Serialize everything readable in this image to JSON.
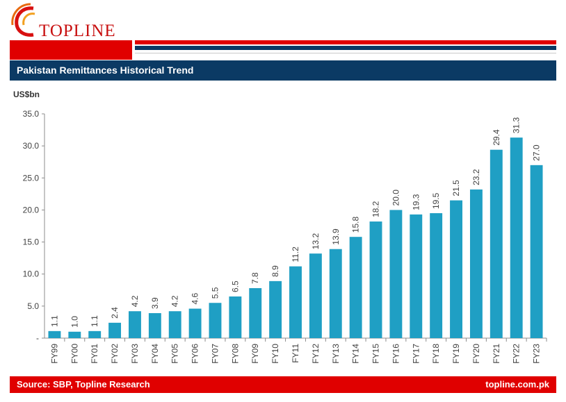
{
  "brand": {
    "name": "TOPLINE",
    "accent": "#e00000",
    "navy": "#0b3a64",
    "bar_color": "#1f9fc4"
  },
  "header": {
    "title": "Pakistan Remittances Historical Trend"
  },
  "footer": {
    "source": "Source: SBP, Topline Research",
    "website": "topline.com.pk"
  },
  "chart_data": {
    "type": "bar",
    "title": "Pakistan Remittances Historical Trend",
    "ylabel": "US$bn",
    "xlabel": "",
    "ylim": [
      0,
      35
    ],
    "yticks": [
      "-",
      "5.0",
      "10.0",
      "15.0",
      "20.0",
      "25.0",
      "30.0",
      "35.0"
    ],
    "grid": false,
    "categories": [
      "FY99",
      "FY00",
      "FY01",
      "FY02",
      "FY03",
      "FY04",
      "FY05",
      "FY06",
      "FY07",
      "FY08",
      "FY09",
      "FY10",
      "FY11",
      "FY12",
      "FY13",
      "FY14",
      "FY15",
      "FY16",
      "FY17",
      "FY18",
      "FY19",
      "FY20",
      "FY21",
      "FY22",
      "FY23"
    ],
    "values": [
      1.1,
      1.0,
      1.1,
      2.4,
      4.2,
      3.9,
      4.2,
      4.6,
      5.5,
      6.5,
      7.8,
      8.9,
      11.2,
      13.2,
      13.9,
      15.8,
      18.2,
      20.0,
      19.3,
      19.5,
      21.5,
      23.2,
      29.4,
      31.3,
      27.0
    ],
    "labels": [
      "1.1",
      "1.0",
      "1.1",
      "2.4",
      "4.2",
      "3.9",
      "4.2",
      "4.6",
      "5.5",
      "6.5",
      "7.8",
      "8.9",
      "11.2",
      "13.2",
      "13.9",
      "15.8",
      "18.2",
      "20.0",
      "19.3",
      "19.5",
      "21.5",
      "23.2",
      "29.4",
      "31.3",
      "27.0"
    ]
  }
}
